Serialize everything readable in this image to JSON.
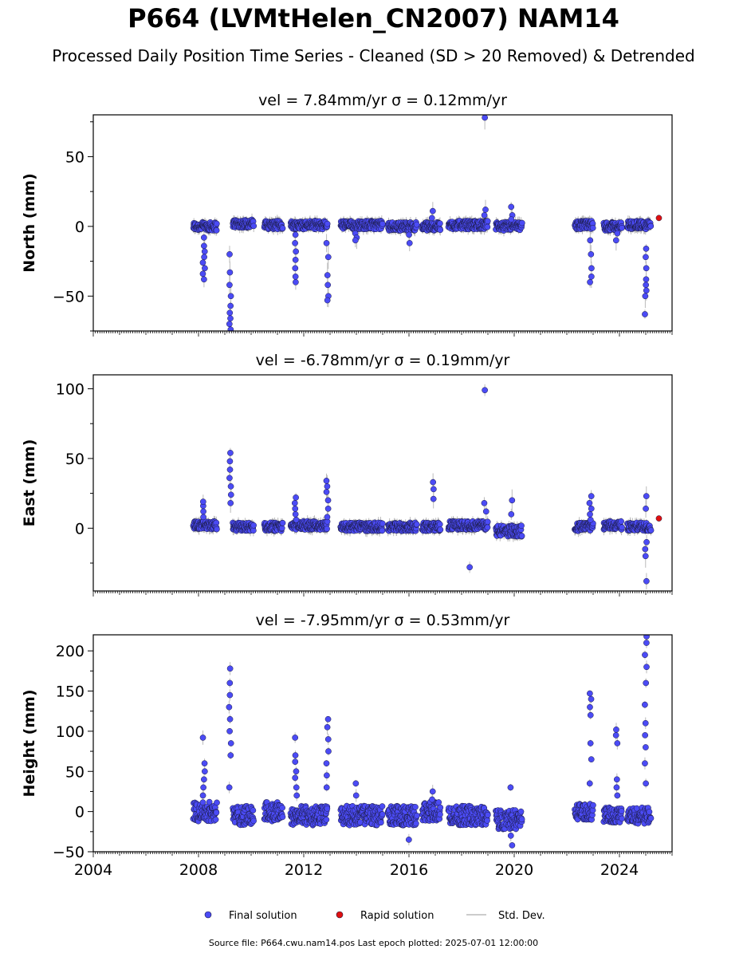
{
  "figure": {
    "title": "P664 (LVMtHelen_CN2007) NAM14",
    "subtitle": "Processed Daily Position Time Series - Cleaned (SD > 20 Removed) & Detrended",
    "footer": "Source file: P664.cwu.nam14.pos  Last epoch plotted: 2025-07-01 12:00:00"
  },
  "colors": {
    "final": "#4b4bf5",
    "rapid": "#e01010",
    "stddev": "#bbbbbb",
    "edge": "#1a1a40"
  },
  "chart_data": [
    {
      "type": "scatter",
      "title": "vel = 7.84mm/yr   σ = 0.12mm/yr",
      "ylabel": "North (mm)",
      "xlim": [
        2004,
        2026
      ],
      "ylim": [
        -75,
        80
      ],
      "yticks": [
        -50,
        0,
        50
      ],
      "xticks": [
        "2004",
        "2008",
        "2012",
        "2016",
        "2020",
        "2024"
      ],
      "segments": [
        {
          "start": 2007.8,
          "end": 2008.7,
          "base": 0,
          "spread": 3
        },
        {
          "start": 2009.3,
          "end": 2010.1,
          "base": 2,
          "spread": 3
        },
        {
          "start": 2010.5,
          "end": 2011.2,
          "base": 1,
          "spread": 3
        },
        {
          "start": 2011.5,
          "end": 2012.9,
          "base": 1,
          "spread": 3
        },
        {
          "start": 2013.4,
          "end": 2015.0,
          "base": 1,
          "spread": 3
        },
        {
          "start": 2015.2,
          "end": 2016.3,
          "base": 0,
          "spread": 3
        },
        {
          "start": 2016.5,
          "end": 2017.2,
          "base": 0,
          "spread": 3
        },
        {
          "start": 2017.5,
          "end": 2019.0,
          "base": 1,
          "spread": 3
        },
        {
          "start": 2019.3,
          "end": 2020.3,
          "base": 0,
          "spread": 3
        },
        {
          "start": 2022.3,
          "end": 2023.0,
          "base": 1,
          "spread": 3
        },
        {
          "start": 2023.4,
          "end": 2024.1,
          "base": 0,
          "spread": 3
        },
        {
          "start": 2024.3,
          "end": 2025.2,
          "base": 1,
          "spread": 3
        }
      ],
      "excursions": [
        {
          "x": 2008.2,
          "values": [
            -8,
            -14,
            -18,
            -22,
            -26,
            -30,
            -34,
            -38
          ]
        },
        {
          "x": 2009.2,
          "values": [
            -20,
            -33,
            -42,
            -50,
            -57,
            -62,
            -66,
            -70,
            -74
          ]
        },
        {
          "x": 2011.7,
          "values": [
            -6,
            -12,
            -18,
            -24,
            -30,
            -36,
            -40
          ]
        },
        {
          "x": 2012.9,
          "values": [
            -12,
            -22,
            -35,
            -42,
            -50,
            -53
          ]
        },
        {
          "x": 2014.0,
          "values": [
            -5,
            -8,
            -10
          ]
        },
        {
          "x": 2016.0,
          "values": [
            -6,
            -12
          ]
        },
        {
          "x": 2016.9,
          "values": [
            11,
            6
          ]
        },
        {
          "x": 2018.9,
          "values": [
            78,
            12,
            8
          ]
        },
        {
          "x": 2019.9,
          "values": [
            14,
            8,
            5
          ]
        },
        {
          "x": 2022.9,
          "values": [
            -10,
            -20,
            -30,
            -36,
            -40
          ]
        },
        {
          "x": 2023.9,
          "values": [
            -5,
            -10
          ]
        },
        {
          "x": 2025.0,
          "values": [
            -16,
            -22,
            -30,
            -38,
            -42,
            -46,
            -50,
            -63
          ]
        }
      ],
      "rapid": [
        {
          "x": 2025.5,
          "y": 6
        }
      ]
    },
    {
      "type": "scatter",
      "title": "vel = -6.78mm/yr   σ = 0.19mm/yr",
      "ylabel": "East (mm)",
      "xlim": [
        2004,
        2026
      ],
      "ylim": [
        -45,
        110
      ],
      "yticks": [
        0,
        50,
        100
      ],
      "xticks": [
        "2004",
        "2008",
        "2012",
        "2016",
        "2020",
        "2024"
      ],
      "segments": [
        {
          "start": 2007.8,
          "end": 2008.7,
          "base": 2,
          "spread": 3
        },
        {
          "start": 2009.3,
          "end": 2010.1,
          "base": 1,
          "spread": 3
        },
        {
          "start": 2010.5,
          "end": 2011.2,
          "base": 1,
          "spread": 3
        },
        {
          "start": 2011.5,
          "end": 2012.9,
          "base": 2,
          "spread": 3
        },
        {
          "start": 2013.4,
          "end": 2015.0,
          "base": 1,
          "spread": 3
        },
        {
          "start": 2015.2,
          "end": 2016.3,
          "base": 1,
          "spread": 3
        },
        {
          "start": 2016.5,
          "end": 2017.2,
          "base": 1,
          "spread": 3
        },
        {
          "start": 2017.5,
          "end": 2019.0,
          "base": 2,
          "spread": 3
        },
        {
          "start": 2019.3,
          "end": 2020.3,
          "base": -2,
          "spread": 4
        },
        {
          "start": 2022.3,
          "end": 2023.0,
          "base": 1,
          "spread": 3
        },
        {
          "start": 2023.4,
          "end": 2024.1,
          "base": 2,
          "spread": 3
        },
        {
          "start": 2024.3,
          "end": 2025.2,
          "base": 1,
          "spread": 3
        }
      ],
      "excursions": [
        {
          "x": 2008.2,
          "values": [
            8,
            12,
            16,
            19
          ]
        },
        {
          "x": 2009.2,
          "values": [
            18,
            24,
            30,
            36,
            42,
            48,
            54
          ]
        },
        {
          "x": 2011.7,
          "values": [
            6,
            10,
            14,
            18,
            22
          ]
        },
        {
          "x": 2012.9,
          "values": [
            8,
            14,
            20,
            26,
            30,
            34
          ]
        },
        {
          "x": 2016.9,
          "values": [
            21,
            28,
            33
          ]
        },
        {
          "x": 2018.3,
          "values": [
            -28
          ]
        },
        {
          "x": 2018.9,
          "values": [
            99,
            18,
            12
          ]
        },
        {
          "x": 2019.9,
          "values": [
            20,
            10
          ]
        },
        {
          "x": 2022.9,
          "values": [
            6,
            10,
            14,
            18,
            23
          ]
        },
        {
          "x": 2025.0,
          "values": [
            -10,
            -15,
            -20,
            -38,
            23,
            14
          ]
        }
      ],
      "rapid": [
        {
          "x": 2025.5,
          "y": 7
        }
      ]
    },
    {
      "type": "scatter",
      "title": "vel = -7.95mm/yr   σ = 0.53mm/yr",
      "ylabel": "Height (mm)",
      "xlim": [
        2004,
        2026
      ],
      "ylim": [
        -50,
        220
      ],
      "yticks": [
        -50,
        0,
        50,
        100,
        150,
        200
      ],
      "xticks": [
        "2004",
        "2008",
        "2012",
        "2016",
        "2020",
        "2024"
      ],
      "segments": [
        {
          "start": 2007.8,
          "end": 2008.7,
          "base": 0,
          "spread": 12
        },
        {
          "start": 2009.3,
          "end": 2010.1,
          "base": -5,
          "spread": 12
        },
        {
          "start": 2010.5,
          "end": 2011.2,
          "base": 0,
          "spread": 12
        },
        {
          "start": 2011.5,
          "end": 2012.9,
          "base": -5,
          "spread": 12
        },
        {
          "start": 2013.4,
          "end": 2015.0,
          "base": -5,
          "spread": 12
        },
        {
          "start": 2015.2,
          "end": 2016.3,
          "base": -5,
          "spread": 12
        },
        {
          "start": 2016.5,
          "end": 2017.2,
          "base": 0,
          "spread": 12
        },
        {
          "start": 2017.5,
          "end": 2019.0,
          "base": -5,
          "spread": 12
        },
        {
          "start": 2019.3,
          "end": 2020.3,
          "base": -10,
          "spread": 12
        },
        {
          "start": 2022.3,
          "end": 2023.0,
          "base": 0,
          "spread": 10
        },
        {
          "start": 2023.4,
          "end": 2024.1,
          "base": -5,
          "spread": 10
        },
        {
          "start": 2024.3,
          "end": 2025.2,
          "base": -5,
          "spread": 10
        }
      ],
      "excursions": [
        {
          "x": 2008.2,
          "values": [
            20,
            30,
            40,
            50,
            60,
            92
          ]
        },
        {
          "x": 2009.2,
          "values": [
            30,
            70,
            85,
            100,
            115,
            130,
            145,
            160,
            178
          ]
        },
        {
          "x": 2011.7,
          "values": [
            20,
            30,
            50,
            70,
            92,
            62,
            42
          ]
        },
        {
          "x": 2012.9,
          "values": [
            30,
            45,
            60,
            75,
            90,
            105,
            115
          ]
        },
        {
          "x": 2014.0,
          "values": [
            20,
            35
          ]
        },
        {
          "x": 2016.9,
          "values": [
            15,
            25
          ]
        },
        {
          "x": 2016.0,
          "values": [
            -35
          ]
        },
        {
          "x": 2019.9,
          "values": [
            30,
            -30,
            -42
          ]
        },
        {
          "x": 2022.9,
          "values": [
            35,
            65,
            85,
            120,
            130,
            140,
            147
          ]
        },
        {
          "x": 2023.9,
          "values": [
            20,
            30,
            40,
            85,
            95,
            102
          ]
        },
        {
          "x": 2025.0,
          "values": [
            35,
            60,
            80,
            95,
            110,
            133,
            160,
            180,
            195,
            210,
            218
          ]
        }
      ],
      "rapid": []
    }
  ],
  "legend": {
    "placement": "bottom-center",
    "final": "Final solution",
    "rapid": "Rapid solution",
    "stddev": "Std. Dev."
  }
}
